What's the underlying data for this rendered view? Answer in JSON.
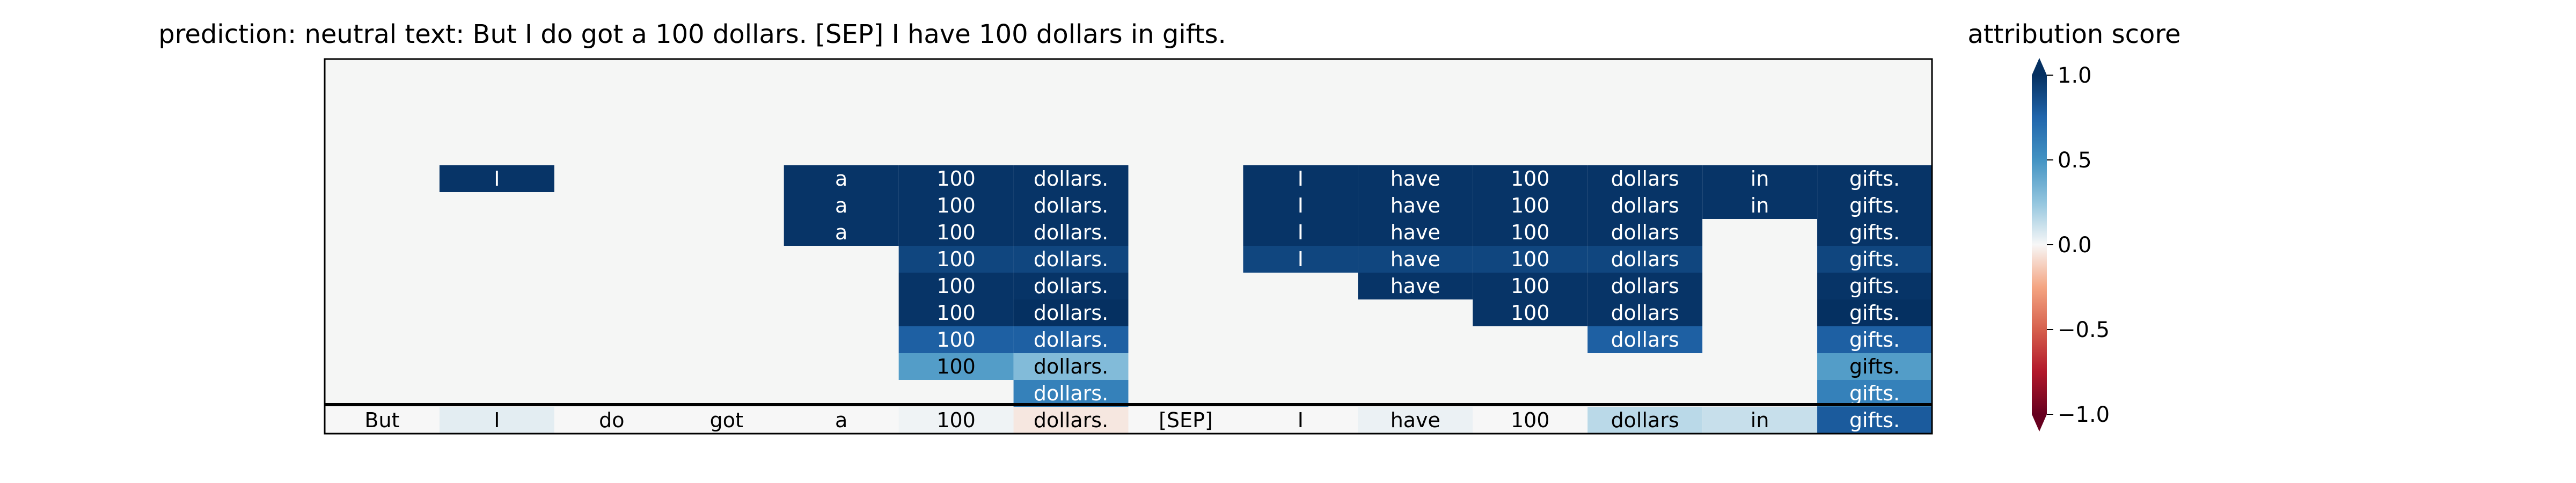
{
  "chart_data": {
    "type": "heatmap",
    "title": "prediction:  neutral     text:  But I do got a 100 dollars. [SEP] I have 100 dollars in gifts.",
    "colorbar": {
      "label": "attribution score",
      "ticks": [
        "1.0",
        "0.5",
        "0.0",
        "−0.5",
        "−1.0"
      ],
      "range": [
        -1.0,
        1.0
      ],
      "colormap": "RdBu"
    },
    "background_color": "#f5f6f5",
    "tokens": [
      "But",
      "I",
      "do",
      "got",
      "a",
      "100",
      "dollars.",
      "[SEP]",
      "I",
      "have",
      "100",
      "dollars",
      "in",
      "gifts."
    ],
    "bottom_row_scores": [
      0.0,
      0.05,
      0.0,
      0.0,
      0.0,
      0.02,
      -0.05,
      0.0,
      0.0,
      0.03,
      0.0,
      0.15,
      0.12,
      0.8
    ],
    "rows": [
      {
        "level": 1,
        "cells": []
      },
      {
        "level": 2,
        "cells": []
      },
      {
        "level": 3,
        "cells": [
          {
            "col": 1,
            "text": "I",
            "score": 0.98
          },
          {
            "col": 4,
            "text": "a",
            "score": 0.98
          },
          {
            "col": 5,
            "text": "100",
            "score": 0.98
          },
          {
            "col": 6,
            "text": "dollars.",
            "score": 0.98
          },
          {
            "col": 8,
            "text": "I",
            "score": 0.98
          },
          {
            "col": 9,
            "text": "have",
            "score": 0.98
          },
          {
            "col": 10,
            "text": "100",
            "score": 0.98
          },
          {
            "col": 11,
            "text": "dollars",
            "score": 0.98
          },
          {
            "col": 12,
            "text": "in",
            "score": 0.98
          },
          {
            "col": 13,
            "text": "gifts.",
            "score": 0.98
          }
        ]
      },
      {
        "level": 4,
        "cells": [
          {
            "col": 4,
            "text": "a",
            "score": 0.98
          },
          {
            "col": 5,
            "text": "100",
            "score": 0.98
          },
          {
            "col": 6,
            "text": "dollars.",
            "score": 0.98
          },
          {
            "col": 8,
            "text": "I",
            "score": 0.98
          },
          {
            "col": 9,
            "text": "have",
            "score": 0.98
          },
          {
            "col": 10,
            "text": "100",
            "score": 0.98
          },
          {
            "col": 11,
            "text": "dollars",
            "score": 0.98
          },
          {
            "col": 12,
            "text": "in",
            "score": 0.98
          },
          {
            "col": 13,
            "text": "gifts.",
            "score": 0.98
          }
        ]
      },
      {
        "level": 5,
        "cells": [
          {
            "col": 4,
            "text": "a",
            "score": 0.98
          },
          {
            "col": 5,
            "text": "100",
            "score": 0.98
          },
          {
            "col": 6,
            "text": "dollars.",
            "score": 0.98
          },
          {
            "col": 8,
            "text": "I",
            "score": 0.98
          },
          {
            "col": 9,
            "text": "have",
            "score": 0.98
          },
          {
            "col": 10,
            "text": "100",
            "score": 0.98
          },
          {
            "col": 11,
            "text": "dollars",
            "score": 0.98
          },
          {
            "col": 13,
            "text": "gifts.",
            "score": 0.98
          }
        ]
      },
      {
        "level": 6,
        "cells": [
          {
            "col": 5,
            "text": "100",
            "score": 0.9
          },
          {
            "col": 6,
            "text": "dollars.",
            "score": 0.9
          },
          {
            "col": 8,
            "text": "I",
            "score": 0.9
          },
          {
            "col": 9,
            "text": "have",
            "score": 0.9
          },
          {
            "col": 10,
            "text": "100",
            "score": 0.9
          },
          {
            "col": 11,
            "text": "dollars",
            "score": 0.9
          },
          {
            "col": 13,
            "text": "gifts.",
            "score": 0.9
          }
        ]
      },
      {
        "level": 7,
        "cells": [
          {
            "col": 5,
            "text": "100",
            "score": 0.98
          },
          {
            "col": 6,
            "text": "dollars.",
            "score": 0.98
          },
          {
            "col": 9,
            "text": "have",
            "score": 0.98
          },
          {
            "col": 10,
            "text": "100",
            "score": 0.98
          },
          {
            "col": 11,
            "text": "dollars",
            "score": 0.98
          },
          {
            "col": 13,
            "text": "gifts.",
            "score": 0.98
          }
        ]
      },
      {
        "level": 8,
        "cells": [
          {
            "col": 5,
            "text": "100",
            "score": 0.98
          },
          {
            "col": 6,
            "text": "dollars.",
            "score": 1.0
          },
          {
            "col": 10,
            "text": "100",
            "score": 0.98
          },
          {
            "col": 11,
            "text": "dollars",
            "score": 0.98
          },
          {
            "col": 13,
            "text": "gifts.",
            "score": 1.0
          }
        ]
      },
      {
        "level": 9,
        "cells": [
          {
            "col": 5,
            "text": "100",
            "score": 0.78
          },
          {
            "col": 6,
            "text": "dollars.",
            "score": 0.78
          },
          {
            "col": 11,
            "text": "dollars",
            "score": 0.78
          },
          {
            "col": 13,
            "text": "gifts.",
            "score": 0.78
          }
        ]
      },
      {
        "level": 10,
        "cells": [
          {
            "col": 5,
            "text": "100",
            "score": 0.45
          },
          {
            "col": 6,
            "text": "dollars.",
            "score": 0.3
          },
          {
            "col": 13,
            "text": "gifts.",
            "score": 0.45
          }
        ]
      },
      {
        "level": 11,
        "cells": [
          {
            "col": 6,
            "text": "dollars.",
            "score": 0.6
          },
          {
            "col": 13,
            "text": "gifts.",
            "score": 0.6
          }
        ]
      }
    ]
  }
}
